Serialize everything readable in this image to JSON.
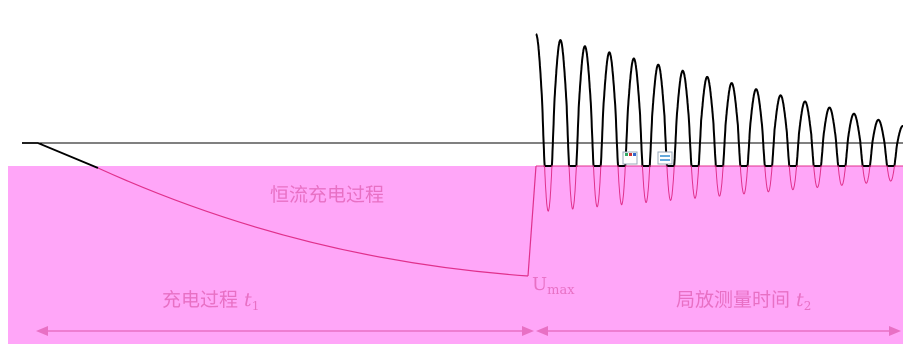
{
  "labels": {
    "constant_current": "恒流充电过程",
    "u_symbol": "U",
    "u_subscript": "max",
    "charge_phase_main": "充电过程 ",
    "charge_phase_var": "t",
    "charge_phase_sub": "1",
    "measure_phase_main": "局放测量时间 ",
    "measure_phase_var": "t",
    "measure_phase_sub": "2"
  },
  "colors": {
    "fill": "#ffa6f8",
    "label": "#e870c4",
    "curve": "#e0308c",
    "baseline": "#000000",
    "waveform": "#000000"
  },
  "waveform": {
    "cycles": 15,
    "first_peak_amplitude": 132,
    "last_peak_amplitude": 40
  }
}
